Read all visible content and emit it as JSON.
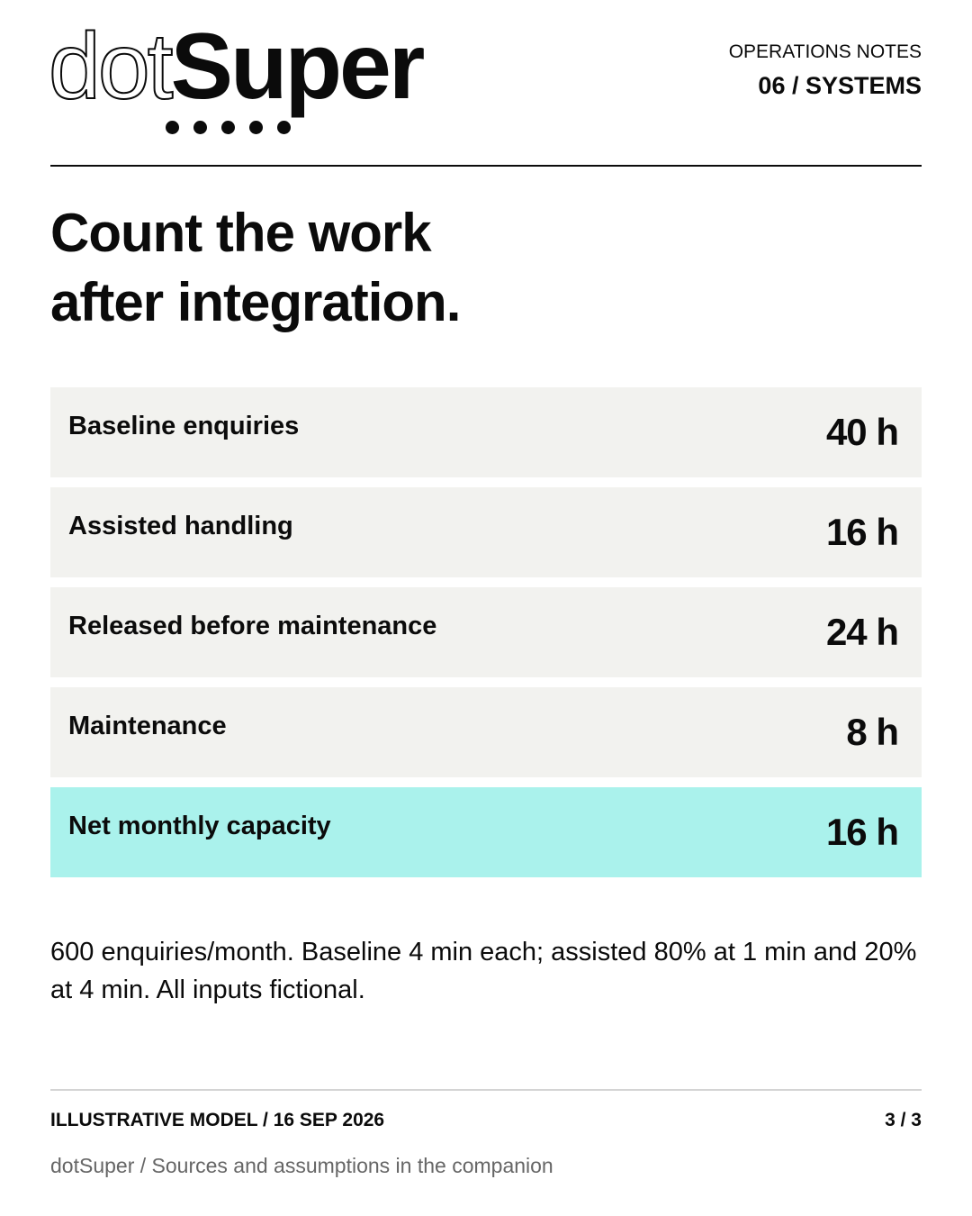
{
  "header": {
    "logo": {
      "light": "dot",
      "bold": "Super"
    },
    "kicker": "OPERATIONS NOTES",
    "section": "06 / SYSTEMS"
  },
  "title": {
    "lines": [
      "Count the work",
      "after integration."
    ]
  },
  "table": {
    "rows": [
      {
        "label": "Baseline enquiries",
        "value": "40 h"
      },
      {
        "label": "Assisted handling",
        "value": "16 h"
      },
      {
        "label": "Released before maintenance",
        "value": "24 h"
      },
      {
        "label": "Maintenance",
        "value": "8 h"
      },
      {
        "label": "Net monthly capacity",
        "value": "16 h",
        "highlight": true
      }
    ]
  },
  "note": "600 enquiries/month. Baseline 4 min each; assisted 80% at 1 min and 20% at 4 min. All inputs fictional.",
  "footer": {
    "left": "ILLUSTRATIVE MODEL / 16 SEP 2026",
    "page": "3 / 3",
    "source": "dotSuper / Sources and assumptions in the companion"
  }
}
